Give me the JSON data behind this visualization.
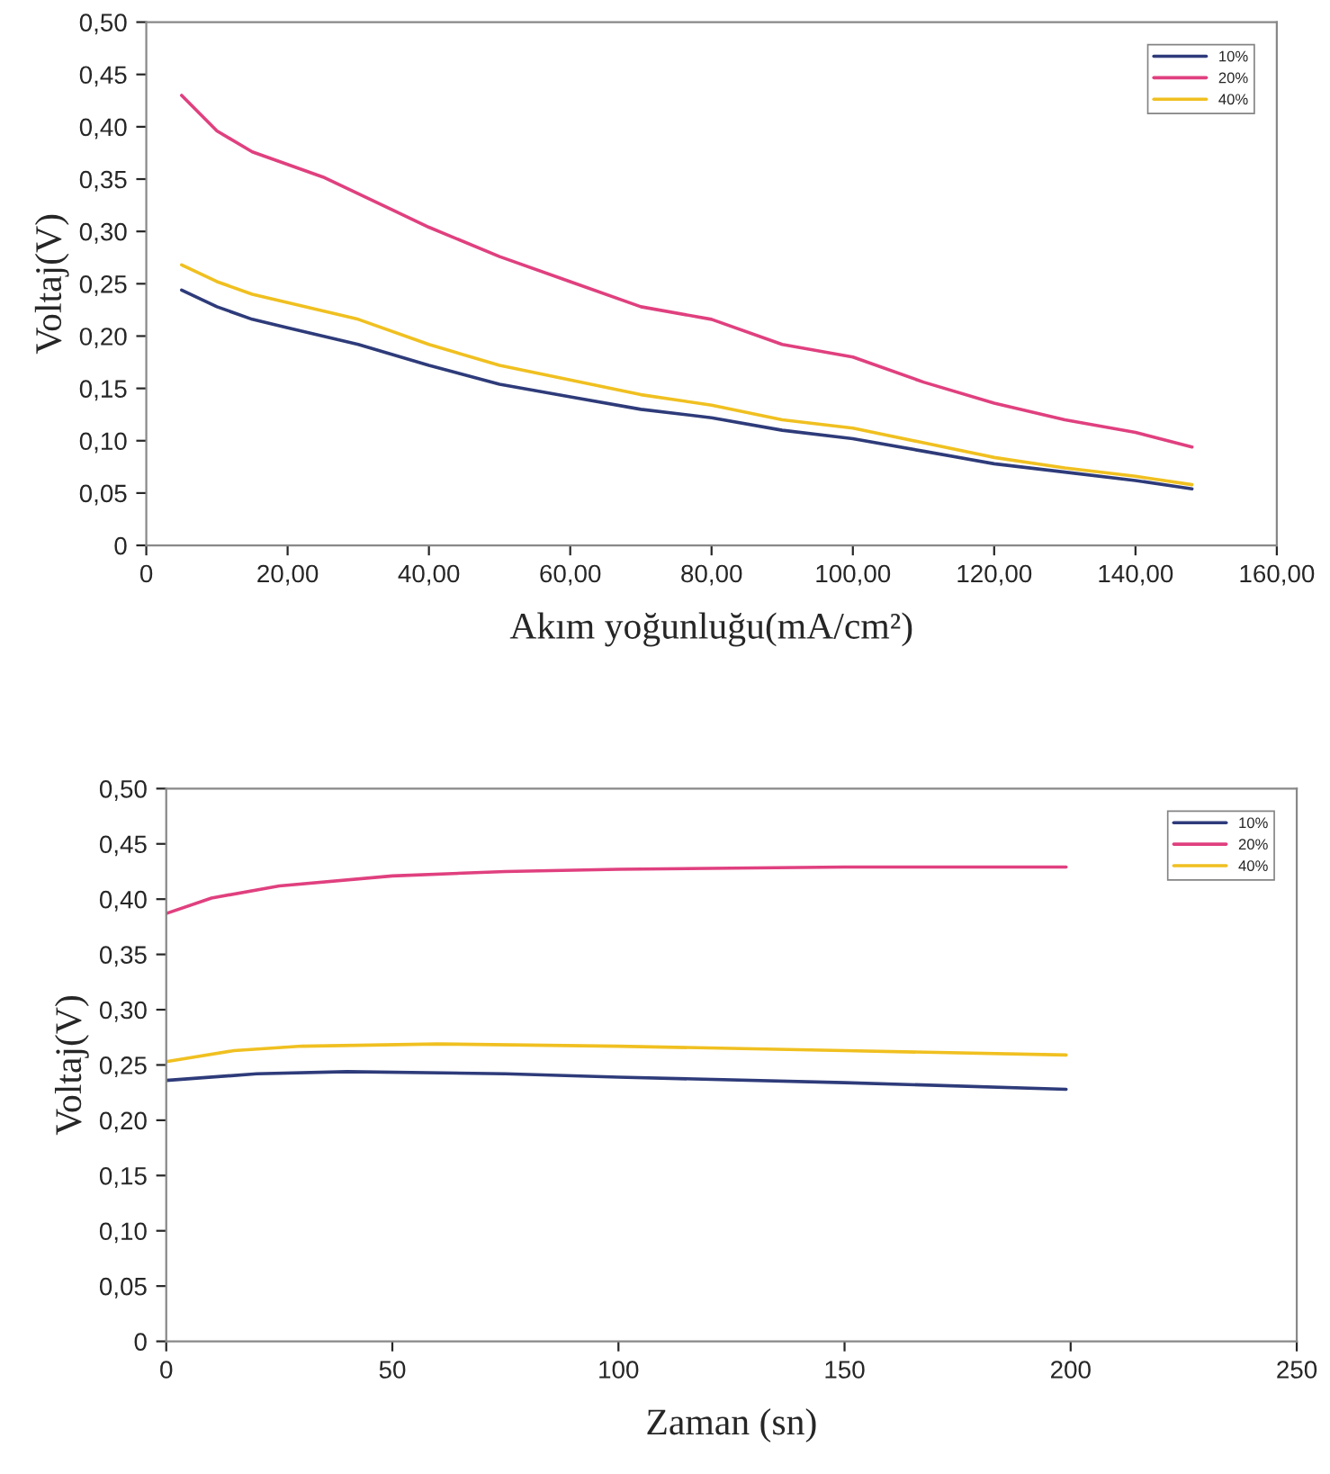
{
  "chart_data": [
    {
      "type": "line",
      "xlabel": "Akım yoğunluğu(mA/cm²)",
      "ylabel": "Voltaj(V)",
      "legend": "top right",
      "grid": false,
      "xlim": [
        0,
        160
      ],
      "xticks": [
        {
          "value": 0,
          "label": "0"
        },
        {
          "value": 20,
          "label": "20,00"
        },
        {
          "value": 40,
          "label": "40,00"
        },
        {
          "value": 60,
          "label": "60,00"
        },
        {
          "value": 80,
          "label": "80,00"
        },
        {
          "value": 100,
          "label": "100,00"
        },
        {
          "value": 120,
          "label": "120,00"
        },
        {
          "value": 140,
          "label": "140,00"
        },
        {
          "value": 160,
          "label": "160,00"
        }
      ],
      "ylim": [
        0,
        0.5
      ],
      "yticks": [
        {
          "value": 0,
          "label": "0"
        },
        {
          "value": 0.05,
          "label": "0,05"
        },
        {
          "value": 0.1,
          "label": "0,10"
        },
        {
          "value": 0.15,
          "label": "0,15"
        },
        {
          "value": 0.2,
          "label": "0,20"
        },
        {
          "value": 0.25,
          "label": "0,25"
        },
        {
          "value": 0.3,
          "label": "0,30"
        },
        {
          "value": 0.35,
          "label": "0,35"
        },
        {
          "value": 0.4,
          "label": "0,40"
        },
        {
          "value": 0.45,
          "label": "0,45"
        },
        {
          "value": 0.5,
          "label": "0,50"
        }
      ],
      "series": [
        {
          "name": "10%",
          "color": "#2e3b7a",
          "x": [
            5,
            10,
            15,
            20,
            30,
            40,
            50,
            60,
            70,
            80,
            90,
            100,
            110,
            120,
            130,
            140,
            148
          ],
          "values": [
            0.244,
            0.228,
            0.216,
            0.208,
            0.192,
            0.172,
            0.154,
            0.142,
            0.13,
            0.122,
            0.11,
            0.102,
            0.09,
            0.078,
            0.07,
            0.062,
            0.054
          ]
        },
        {
          "name": "20%",
          "color": "#e0407f",
          "x": [
            5,
            10,
            15,
            25,
            35,
            40,
            50,
            60,
            70,
            80,
            90,
            100,
            110,
            120,
            130,
            140,
            148
          ],
          "values": [
            0.43,
            0.396,
            0.376,
            0.352,
            0.32,
            0.304,
            0.276,
            0.252,
            0.228,
            0.216,
            0.192,
            0.18,
            0.156,
            0.136,
            0.12,
            0.108,
            0.094
          ]
        },
        {
          "name": "40%",
          "color": "#f0c020",
          "x": [
            5,
            10,
            15,
            20,
            30,
            40,
            50,
            60,
            70,
            80,
            90,
            100,
            110,
            120,
            130,
            140,
            148
          ],
          "values": [
            0.268,
            0.252,
            0.24,
            0.232,
            0.216,
            0.192,
            0.172,
            0.158,
            0.144,
            0.134,
            0.12,
            0.112,
            0.098,
            0.084,
            0.074,
            0.066,
            0.058
          ]
        }
      ]
    },
    {
      "type": "line",
      "xlabel": "Zaman (sn)",
      "ylabel": "Voltaj(V)",
      "legend": "top right",
      "grid": false,
      "xlim": [
        0,
        250
      ],
      "xticks": [
        0,
        50,
        100,
        150,
        200,
        250
      ],
      "ylim": [
        0,
        0.5
      ],
      "yticks": [
        {
          "value": 0,
          "label": "0"
        },
        {
          "value": 0.05,
          "label": "0,05"
        },
        {
          "value": 0.1,
          "label": "0,10"
        },
        {
          "value": 0.15,
          "label": "0,15"
        },
        {
          "value": 0.2,
          "label": "0,20"
        },
        {
          "value": 0.25,
          "label": "0,25"
        },
        {
          "value": 0.3,
          "label": "0,30"
        },
        {
          "value": 0.35,
          "label": "0,35"
        },
        {
          "value": 0.4,
          "label": "0,40"
        },
        {
          "value": 0.45,
          "label": "0,45"
        },
        {
          "value": 0.5,
          "label": "0,50"
        }
      ],
      "series": [
        {
          "name": "10%",
          "color": "#2e3b7a",
          "x": [
            0,
            20,
            40,
            75,
            100,
            150,
            199
          ],
          "values": [
            0.236,
            0.242,
            0.244,
            0.242,
            0.239,
            0.234,
            0.228
          ]
        },
        {
          "name": "20%",
          "color": "#e0407f",
          "x": [
            0,
            10,
            25,
            50,
            75,
            100,
            150,
            199
          ],
          "values": [
            0.387,
            0.401,
            0.412,
            0.421,
            0.425,
            0.427,
            0.429,
            0.429
          ]
        },
        {
          "name": "40%",
          "color": "#f0c020",
          "x": [
            0,
            15,
            30,
            60,
            100,
            150,
            199
          ],
          "values": [
            0.253,
            0.263,
            0.267,
            0.269,
            0.267,
            0.263,
            0.259
          ]
        }
      ]
    }
  ]
}
